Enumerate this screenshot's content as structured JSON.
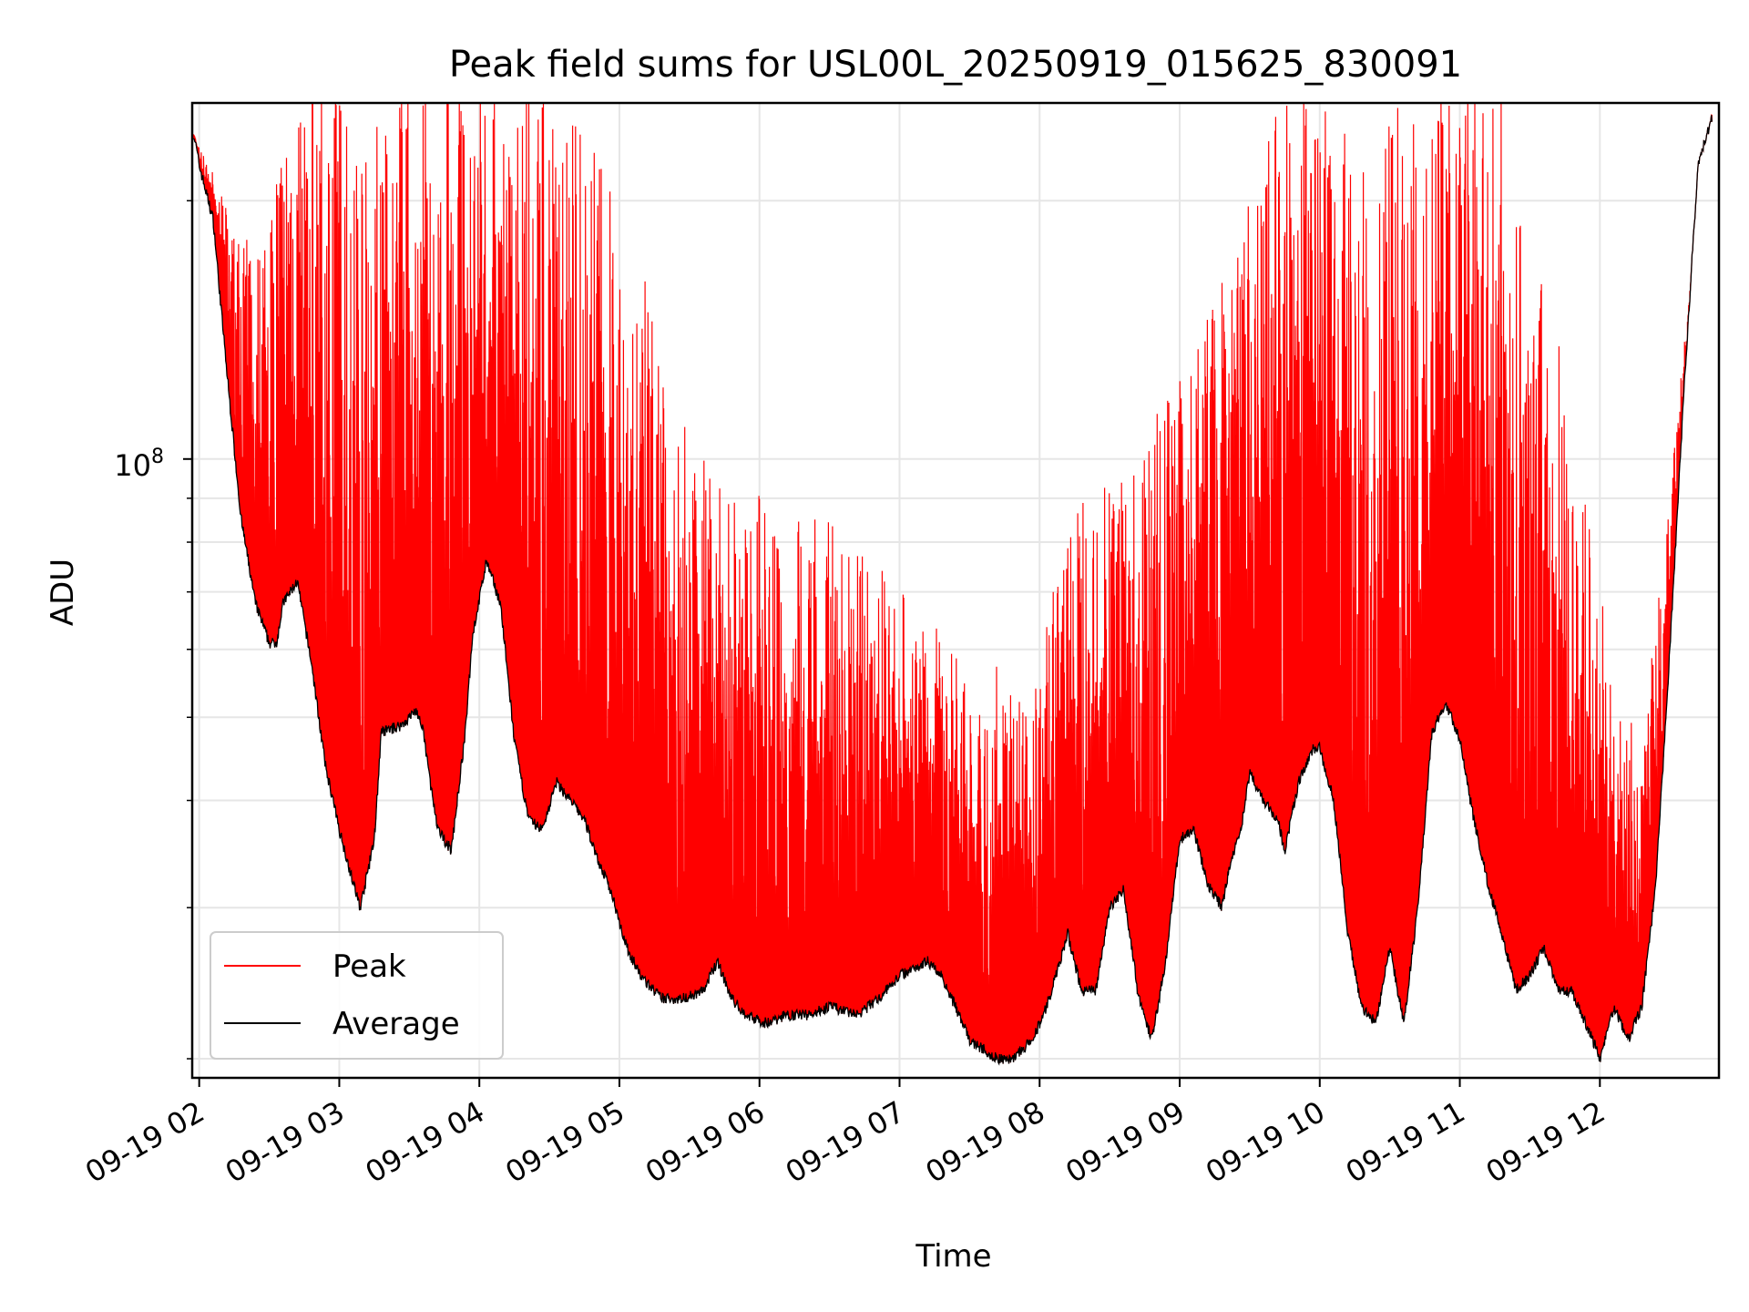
{
  "chart_data": {
    "type": "line",
    "title": "Peak field sums for USL00L_20250919_015625_830091",
    "xlabel": "Time",
    "ylabel": "ADU",
    "y_scale": "log",
    "ylim": [
      19000000,
      260000000
    ],
    "xlim_hours": [
      1.95,
      12.85
    ],
    "grid": true,
    "legend_position": "lower-left",
    "x_ticks": [
      {
        "label": "09-19 02",
        "hour": 2
      },
      {
        "label": "09-19 03",
        "hour": 3
      },
      {
        "label": "09-19 04",
        "hour": 4
      },
      {
        "label": "09-19 05",
        "hour": 5
      },
      {
        "label": "09-19 06",
        "hour": 6
      },
      {
        "label": "09-19 07",
        "hour": 7
      },
      {
        "label": "09-19 08",
        "hour": 8
      },
      {
        "label": "09-19 09",
        "hour": 9
      },
      {
        "label": "09-19 10",
        "hour": 10
      },
      {
        "label": "09-19 11",
        "hour": 11
      },
      {
        "label": "09-19 12",
        "hour": 12
      }
    ],
    "y_major_tick": {
      "value": 100000000,
      "base": "10",
      "exp": "8"
    },
    "series": [
      {
        "name": "Peak",
        "color": "#ff0000",
        "envelope_hours": [
          1.96,
          2.0,
          2.1,
          2.2,
          2.3,
          2.45,
          2.6,
          2.75,
          2.9,
          3.0,
          3.1,
          3.15,
          3.25,
          3.4,
          3.55,
          3.7,
          3.85,
          3.95,
          4.05,
          4.2,
          4.35,
          4.5,
          4.65,
          4.8,
          4.95,
          5.05,
          5.2,
          5.35,
          5.5,
          5.65,
          5.8,
          5.95,
          6.1,
          6.3,
          6.5,
          6.7,
          6.9,
          7.1,
          7.3,
          7.5,
          7.7,
          7.85,
          8.0,
          8.15,
          8.3,
          8.5,
          8.7,
          8.9,
          9.1,
          9.3,
          9.5,
          9.7,
          9.85,
          10.0,
          10.15,
          10.3,
          10.45,
          10.6,
          10.7,
          10.85,
          11.0,
          11.15,
          11.3,
          11.5,
          11.7,
          11.85,
          12.0,
          12.15,
          12.3,
          12.5,
          12.7,
          12.8
        ],
        "envelope_values": [
          240000000,
          230000000,
          215000000,
          190000000,
          170000000,
          185000000,
          225000000,
          250000000,
          255000000,
          250000000,
          240000000,
          230000000,
          245000000,
          255000000,
          250000000,
          250000000,
          255000000,
          250000000,
          250000000,
          240000000,
          250000000,
          245000000,
          230000000,
          215000000,
          200000000,
          175000000,
          145000000,
          120000000,
          105000000,
          90000000,
          85000000,
          90000000,
          80000000,
          85000000,
          80000000,
          75000000,
          70000000,
          65000000,
          60000000,
          55000000,
          55000000,
          50000000,
          60000000,
          75000000,
          85000000,
          90000000,
          95000000,
          115000000,
          130000000,
          150000000,
          190000000,
          240000000,
          255000000,
          250000000,
          230000000,
          200000000,
          215000000,
          240000000,
          255000000,
          255000000,
          255000000,
          250000000,
          235000000,
          180000000,
          130000000,
          90000000,
          70000000,
          50000000,
          45000000,
          90000000,
          200000000,
          255000000
        ]
      },
      {
        "name": "Average",
        "color": "#000000",
        "hours": [
          1.96,
          2.0,
          2.1,
          2.2,
          2.3,
          2.4,
          2.5,
          2.55,
          2.6,
          2.7,
          2.8,
          2.9,
          3.0,
          3.1,
          3.15,
          3.25,
          3.3,
          3.45,
          3.55,
          3.6,
          3.65,
          3.7,
          3.8,
          3.9,
          3.95,
          4.05,
          4.15,
          4.25,
          4.35,
          4.45,
          4.55,
          4.65,
          4.75,
          4.85,
          4.95,
          5.05,
          5.15,
          5.3,
          5.45,
          5.6,
          5.7,
          5.8,
          5.9,
          6.05,
          6.2,
          6.35,
          6.5,
          6.7,
          6.85,
          7.0,
          7.2,
          7.3,
          7.4,
          7.5,
          7.6,
          7.7,
          7.8,
          7.95,
          8.05,
          8.15,
          8.2,
          8.3,
          8.4,
          8.5,
          8.6,
          8.7,
          8.8,
          8.9,
          9.0,
          9.1,
          9.2,
          9.3,
          9.35,
          9.45,
          9.5,
          9.6,
          9.7,
          9.75,
          9.85,
          9.95,
          10.0,
          10.1,
          10.2,
          10.3,
          10.4,
          10.5,
          10.6,
          10.7,
          10.8,
          10.9,
          11.0,
          11.1,
          11.2,
          11.3,
          11.4,
          11.5,
          11.6,
          11.7,
          11.8,
          11.9,
          12.0,
          12.1,
          12.2,
          12.3,
          12.4,
          12.5,
          12.6,
          12.7,
          12.8
        ],
        "values": [
          240000000,
          220000000,
          190000000,
          125000000,
          85000000,
          68000000,
          61000000,
          61000000,
          68000000,
          72000000,
          58000000,
          44000000,
          37000000,
          32000000,
          30000000,
          36000000,
          48000000,
          49000000,
          51000000,
          48000000,
          42000000,
          37000000,
          35000000,
          48000000,
          62000000,
          76000000,
          68000000,
          47000000,
          38000000,
          37000000,
          42000000,
          40000000,
          38000000,
          34000000,
          31000000,
          27000000,
          25000000,
          23500000,
          23500000,
          24000000,
          26000000,
          23500000,
          22500000,
          22000000,
          22500000,
          22500000,
          23000000,
          22500000,
          23500000,
          25000000,
          26000000,
          25000000,
          23000000,
          21000000,
          20500000,
          20000000,
          20000000,
          21000000,
          23000000,
          26000000,
          28000000,
          24000000,
          24000000,
          30000000,
          31500000,
          24000000,
          21000000,
          26000000,
          36000000,
          37000000,
          32000000,
          30000000,
          33000000,
          38000000,
          43000000,
          40000000,
          38000000,
          35000000,
          42000000,
          46000000,
          46000000,
          40000000,
          28000000,
          23000000,
          22000000,
          27000000,
          22000000,
          30000000,
          48000000,
          52000000,
          47000000,
          38000000,
          32000000,
          28000000,
          24000000,
          25000000,
          27000000,
          24000000,
          24000000,
          22000000,
          20000000,
          23000000,
          21000000,
          23000000,
          32000000,
          60000000,
          120000000,
          220000000,
          250000000
        ]
      }
    ]
  }
}
